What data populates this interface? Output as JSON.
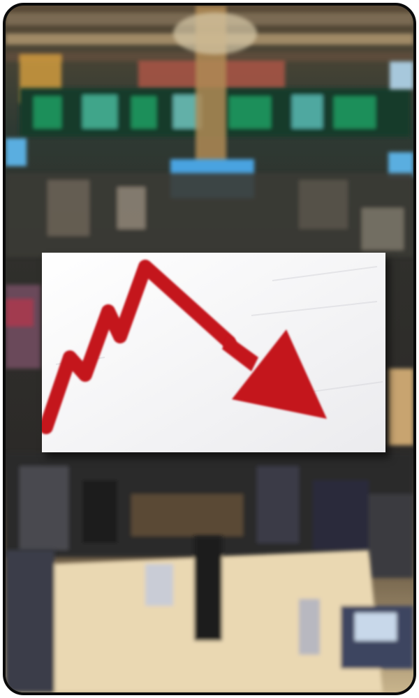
{
  "colors": {
    "frame": "#0a0a0a",
    "arrow": "#c4151c",
    "panel": "#f6f6f7",
    "floor": "#ead8b2",
    "screen_green": "#1f8f5a",
    "screen_blue": "#4aa3e0",
    "ceiling_gold": "#b08a55"
  },
  "icons": {
    "arrow": "downward-trend-arrow-icon"
  }
}
